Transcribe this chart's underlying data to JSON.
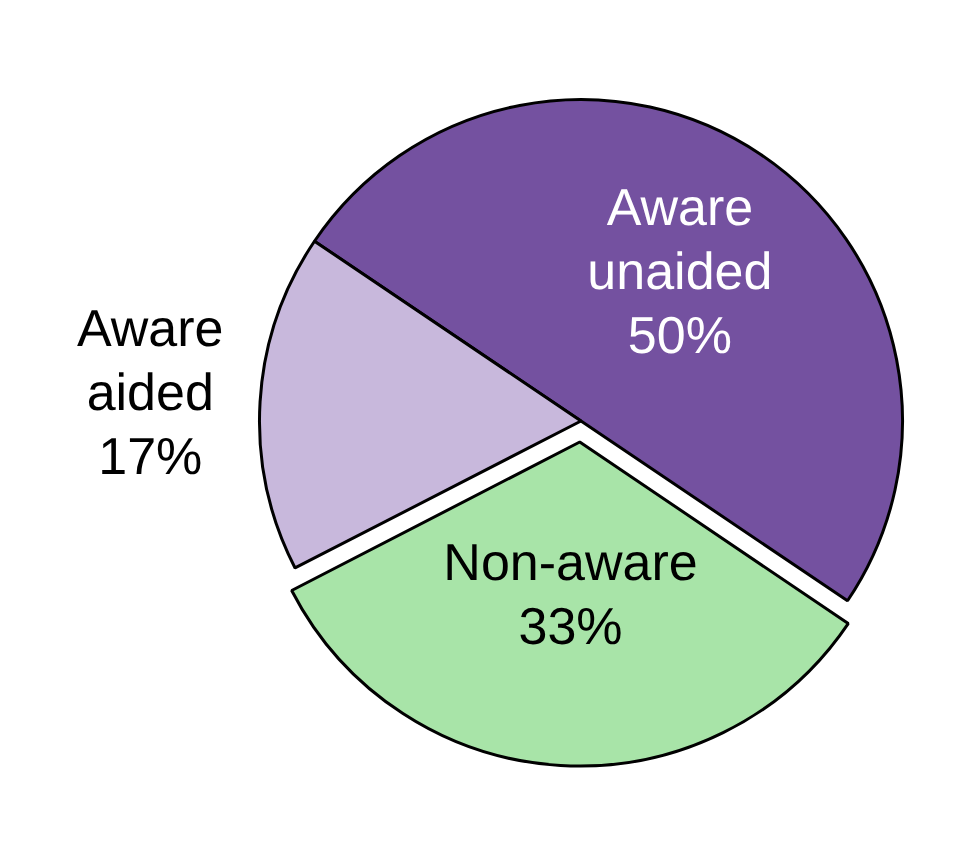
{
  "chart_data": {
    "type": "pie",
    "categories": [
      "Aware unaided",
      "Non-aware",
      "Aware aided"
    ],
    "values": [
      50,
      33,
      17
    ],
    "colors": [
      "#7451a0",
      "#a8e4a8",
      "#c8b8dc"
    ],
    "value_labels": [
      "50%",
      "33%",
      "17%"
    ],
    "legend": false
  }
}
